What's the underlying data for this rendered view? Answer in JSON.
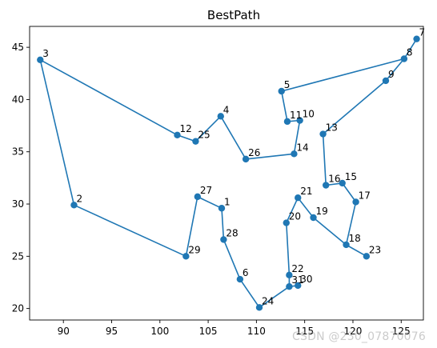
{
  "chart_data": {
    "type": "line",
    "title": "BestPath",
    "xlabel": "",
    "ylabel": "",
    "xlim": [
      86.5,
      127.3
    ],
    "ylim": [
      18.9,
      47.0
    ],
    "xticks": [
      90,
      95,
      100,
      105,
      110,
      115,
      120,
      125
    ],
    "yticks": [
      20,
      25,
      30,
      35,
      40,
      45
    ],
    "grid": false,
    "line_color": "#1f77b4",
    "point_labels": [
      {
        "label": "1",
        "x": 106.4,
        "y": 29.6
      },
      {
        "label": "2",
        "x": 91.1,
        "y": 29.9
      },
      {
        "label": "3",
        "x": 87.6,
        "y": 43.8
      },
      {
        "label": "4",
        "x": 106.3,
        "y": 38.4
      },
      {
        "label": "5",
        "x": 112.6,
        "y": 40.8
      },
      {
        "label": "6",
        "x": 108.3,
        "y": 22.8
      },
      {
        "label": "7",
        "x": 126.6,
        "y": 45.8
      },
      {
        "label": "8",
        "x": 125.3,
        "y": 43.9
      },
      {
        "label": "9",
        "x": 123.4,
        "y": 41.8
      },
      {
        "label": "10",
        "x": 114.5,
        "y": 38.0
      },
      {
        "label": "11",
        "x": 113.2,
        "y": 37.9
      },
      {
        "label": "12",
        "x": 101.8,
        "y": 36.6
      },
      {
        "label": "13",
        "x": 116.9,
        "y": 36.7
      },
      {
        "label": "14",
        "x": 113.9,
        "y": 34.8
      },
      {
        "label": "15",
        "x": 118.9,
        "y": 32.0
      },
      {
        "label": "16",
        "x": 117.2,
        "y": 31.8
      },
      {
        "label": "17",
        "x": 120.3,
        "y": 30.2
      },
      {
        "label": "18",
        "x": 119.3,
        "y": 26.1
      },
      {
        "label": "19",
        "x": 115.9,
        "y": 28.7
      },
      {
        "label": "20",
        "x": 113.1,
        "y": 28.2
      },
      {
        "label": "21",
        "x": 114.3,
        "y": 30.6
      },
      {
        "label": "22",
        "x": 113.4,
        "y": 23.2
      },
      {
        "label": "23",
        "x": 121.4,
        "y": 25.0
      },
      {
        "label": "24",
        "x": 110.3,
        "y": 20.1
      },
      {
        "label": "25",
        "x": 103.7,
        "y": 36.0
      },
      {
        "label": "26",
        "x": 108.9,
        "y": 34.3
      },
      {
        "label": "27",
        "x": 103.9,
        "y": 30.7
      },
      {
        "label": "28",
        "x": 106.6,
        "y": 26.6
      },
      {
        "label": "29",
        "x": 102.7,
        "y": 25.0
      },
      {
        "label": "30",
        "x": 114.3,
        "y": 22.2
      },
      {
        "label": "31",
        "x": 113.4,
        "y": 22.1
      }
    ],
    "path": [
      [
        87.6,
        43.8
      ],
      [
        101.8,
        36.6
      ],
      [
        103.7,
        36.0
      ],
      [
        106.3,
        38.4
      ],
      [
        108.9,
        34.3
      ],
      [
        113.9,
        34.8
      ],
      [
        114.5,
        38.0
      ],
      [
        113.2,
        37.9
      ],
      [
        112.6,
        40.8
      ],
      [
        125.3,
        43.9
      ],
      [
        126.6,
        45.8
      ],
      [
        125.3,
        43.9
      ],
      [
        123.4,
        41.8
      ],
      [
        116.9,
        36.7
      ],
      [
        117.2,
        31.8
      ],
      [
        118.9,
        32.0
      ],
      [
        120.3,
        30.2
      ],
      [
        119.3,
        26.1
      ],
      [
        121.4,
        25.0
      ],
      [
        119.3,
        26.1
      ],
      [
        115.9,
        28.7
      ],
      [
        114.3,
        30.6
      ],
      [
        113.1,
        28.2
      ],
      [
        113.4,
        23.2
      ],
      [
        113.4,
        22.1
      ],
      [
        114.3,
        22.2
      ],
      [
        113.4,
        22.1
      ],
      [
        110.3,
        20.1
      ],
      [
        108.3,
        22.8
      ],
      [
        106.6,
        26.6
      ],
      [
        106.4,
        29.6
      ],
      [
        103.9,
        30.7
      ],
      [
        102.7,
        25.0
      ],
      [
        91.1,
        29.9
      ],
      [
        87.6,
        43.8
      ]
    ]
  },
  "watermark": "CSDN @230_07870076"
}
